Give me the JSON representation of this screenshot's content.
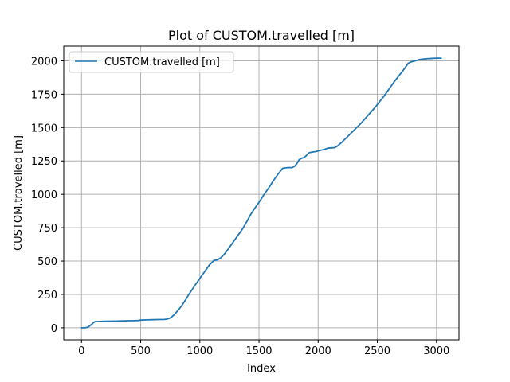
{
  "chart_data": {
    "type": "line",
    "title": "Plot of CUSTOM.travelled [m]",
    "xlabel": "Index",
    "ylabel": "CUSTOM.travelled [m]",
    "xlim": [
      -150,
      3190
    ],
    "ylim": [
      -90,
      2110
    ],
    "xticks": [
      0,
      500,
      1000,
      1500,
      2000,
      2500,
      3000
    ],
    "yticks": [
      0,
      250,
      500,
      750,
      1000,
      1250,
      1500,
      1750,
      2000
    ],
    "grid": true,
    "legend": {
      "position": "top-left"
    },
    "series": [
      {
        "name": "CUSTOM.travelled [m]",
        "color": "#1f77b4",
        "x": [
          0,
          30,
          55,
          70,
          85,
          100,
          110,
          115,
          125,
          150,
          200,
          250,
          300,
          350,
          400,
          450,
          480,
          500,
          550,
          600,
          650,
          700,
          720,
          740,
          760,
          780,
          800,
          820,
          850,
          880,
          900,
          930,
          960,
          1000,
          1040,
          1080,
          1120,
          1150,
          1170,
          1190,
          1210,
          1240,
          1280,
          1320,
          1360,
          1400,
          1430,
          1460,
          1500,
          1540,
          1580,
          1620,
          1660,
          1700,
          1720,
          1740,
          1760,
          1780,
          1800,
          1820,
          1840,
          1860,
          1880,
          1900,
          1920,
          1940,
          1960,
          1980,
          2000,
          2020,
          2060,
          2080,
          2100,
          2120,
          2140,
          2160,
          2180,
          2200,
          2240,
          2280,
          2320,
          2360,
          2400,
          2440,
          2480,
          2520,
          2560,
          2600,
          2640,
          2680,
          2720,
          2760,
          2780,
          2800,
          2820,
          2840,
          2860,
          2880,
          2920,
          2960,
          3000,
          3040
        ],
        "y": [
          0,
          0,
          5,
          15,
          25,
          38,
          45,
          46,
          47,
          48,
          49,
          50,
          51,
          52,
          53,
          54,
          55,
          58,
          60,
          61,
          62,
          63,
          65,
          70,
          80,
          95,
          115,
          135,
          170,
          210,
          240,
          280,
          320,
          370,
          420,
          470,
          505,
          510,
          520,
          535,
          555,
          590,
          640,
          690,
          740,
          800,
          850,
          890,
          940,
          995,
          1045,
          1100,
          1150,
          1195,
          1198,
          1200,
          1200,
          1200,
          1210,
          1230,
          1260,
          1270,
          1275,
          1290,
          1310,
          1315,
          1318,
          1320,
          1325,
          1330,
          1338,
          1345,
          1348,
          1348,
          1350,
          1360,
          1375,
          1390,
          1425,
          1460,
          1495,
          1530,
          1570,
          1610,
          1650,
          1695,
          1740,
          1790,
          1840,
          1885,
          1930,
          1980,
          1990,
          1995,
          2000,
          2005,
          2010,
          2012,
          2016,
          2018,
          2020,
          2020
        ]
      }
    ]
  }
}
